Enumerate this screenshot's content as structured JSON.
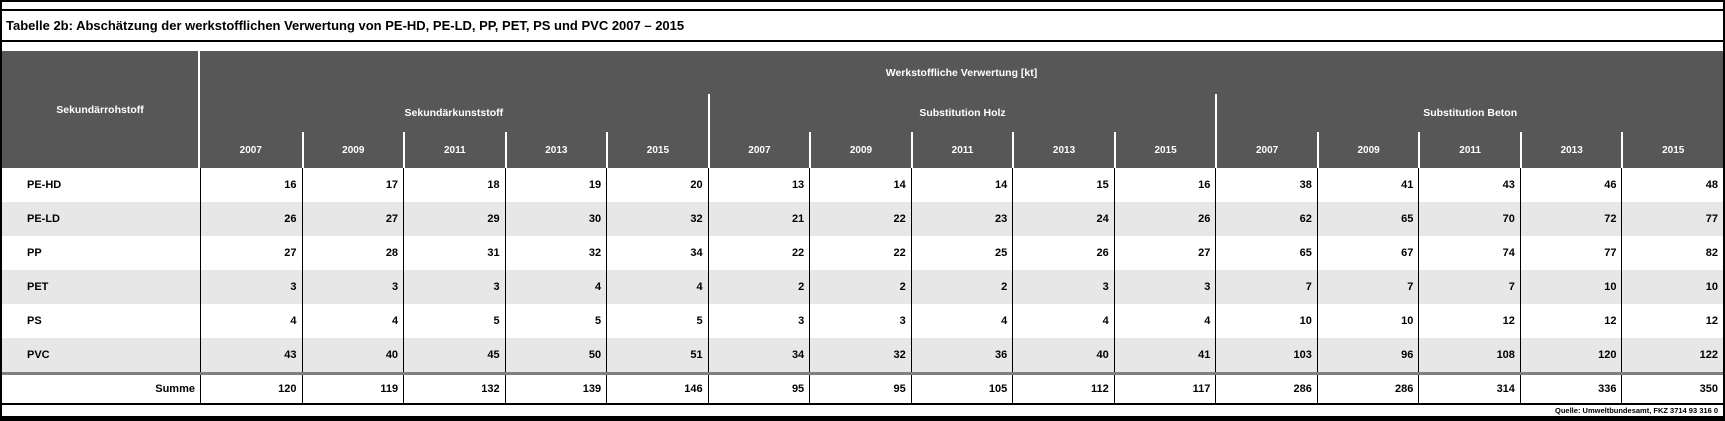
{
  "title": "Tabelle 2b: Abschätzung der werkstofflichen Verwertung von PE-HD, PE-LD, PP, PET, PS und PVC 2007 – 2015",
  "chart_data": {
    "type": "table",
    "corner_header": "Sekundärrohstoff",
    "unit_header": "Werkstoffliche Verwertung [kt]",
    "column_groups": [
      "Sekundärkunststoff",
      "Substitution Holz",
      "Substitution Beton"
    ],
    "years": [
      "2007",
      "2009",
      "2011",
      "2013",
      "2015"
    ],
    "rows": [
      {
        "label": "PE-HD",
        "values": [
          16,
          17,
          18,
          19,
          20,
          13,
          14,
          14,
          15,
          16,
          38,
          41,
          43,
          46,
          48
        ]
      },
      {
        "label": "PE-LD",
        "values": [
          26,
          27,
          29,
          30,
          32,
          21,
          22,
          23,
          24,
          26,
          62,
          65,
          70,
          72,
          77
        ]
      },
      {
        "label": "PP",
        "values": [
          27,
          28,
          31,
          32,
          34,
          22,
          22,
          25,
          26,
          27,
          65,
          67,
          74,
          77,
          82
        ]
      },
      {
        "label": "PET",
        "values": [
          3,
          3,
          3,
          4,
          4,
          2,
          2,
          2,
          3,
          3,
          7,
          7,
          7,
          10,
          10
        ]
      },
      {
        "label": "PS",
        "values": [
          4,
          4,
          5,
          5,
          5,
          3,
          3,
          4,
          4,
          4,
          10,
          10,
          12,
          12,
          12
        ]
      },
      {
        "label": "PVC",
        "values": [
          43,
          40,
          45,
          50,
          51,
          34,
          32,
          36,
          40,
          41,
          103,
          96,
          108,
          120,
          122
        ]
      }
    ],
    "summary": {
      "label": "Summe",
      "values": [
        120,
        119,
        132,
        139,
        146,
        95,
        95,
        105,
        112,
        117,
        286,
        286,
        314,
        336,
        350
      ]
    }
  },
  "footer": {
    "source": "Quelle: Umweltbundesamt, FKZ 3714 93 316 0"
  },
  "colors": {
    "header_bg": "#575757",
    "header_text": "#FFFFFF",
    "band_row_bg": "#E7E7E7",
    "summary_top_border": "#7F7F7F",
    "border": "#000000"
  }
}
